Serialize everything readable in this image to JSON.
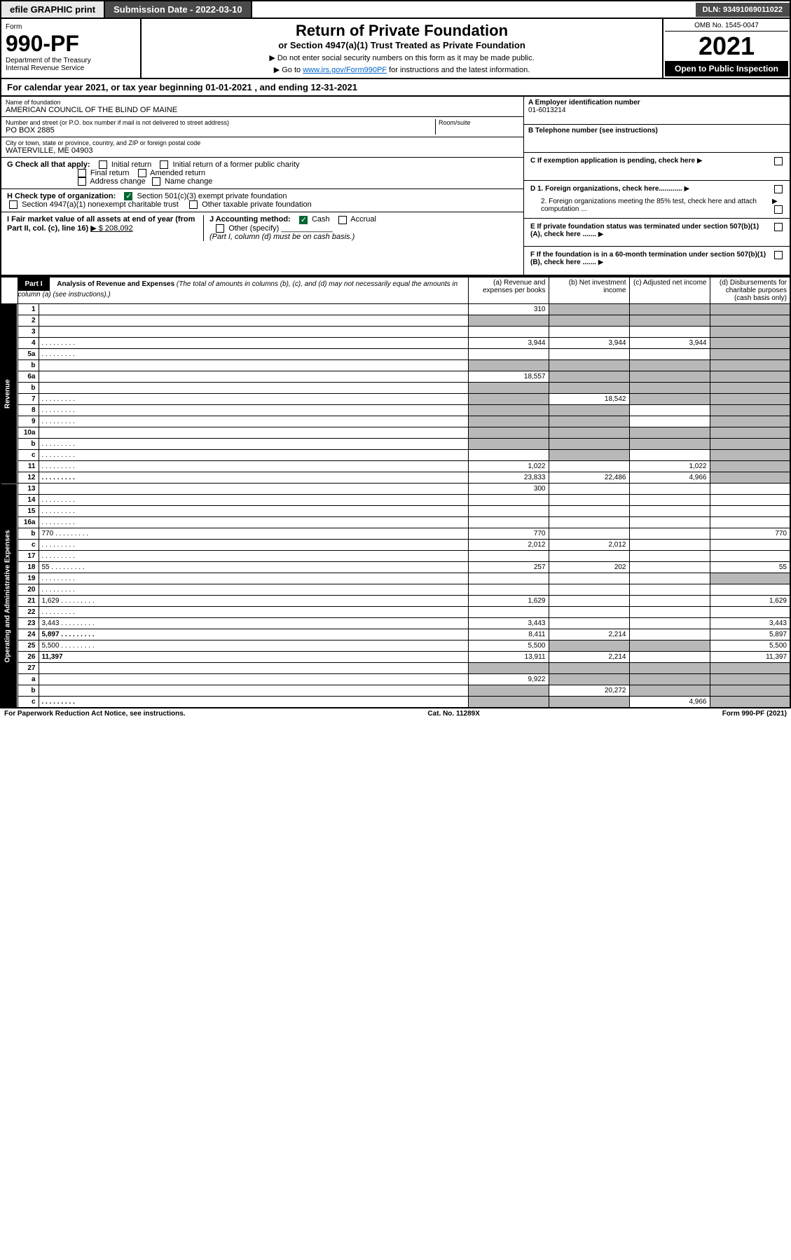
{
  "topbar": {
    "efile": "efile GRAPHIC print",
    "submission": "Submission Date - 2022-03-10",
    "dln": "DLN: 93491069011022"
  },
  "header": {
    "form_label": "Form",
    "form_number": "990-PF",
    "dept": "Department of the Treasury",
    "irs": "Internal Revenue Service",
    "title": "Return of Private Foundation",
    "subtitle": "or Section 4947(a)(1) Trust Treated as Private Foundation",
    "note1": "▶ Do not enter social security numbers on this form as it may be made public.",
    "note2_pre": "▶ Go to ",
    "note2_link": "www.irs.gov/Form990PF",
    "note2_post": " for instructions and the latest information.",
    "omb": "OMB No. 1545-0047",
    "year": "2021",
    "open": "Open to Public Inspection"
  },
  "calyear": "For calendar year 2021, or tax year beginning 01-01-2021          , and ending 12-31-2021",
  "foundation": {
    "name_label": "Name of foundation",
    "name": "AMERICAN COUNCIL OF THE BLIND OF MAINE",
    "addr_label": "Number and street (or P.O. box number if mail is not delivered to street address)",
    "addr": "PO BOX 2885",
    "room_label": "Room/suite",
    "city_label": "City or town, state or province, country, and ZIP or foreign postal code",
    "city": "WATERVILLE, ME  04903",
    "ein_label": "A Employer identification number",
    "ein": "01-6013214",
    "phone_label": "B Telephone number (see instructions)",
    "c_label": "C If exemption application is pending, check here",
    "d1": "D 1. Foreign organizations, check here............",
    "d2": "2. Foreign organizations meeting the 85% test, check here and attach computation ...",
    "e_label": "E If private foundation status was terminated under section 507(b)(1)(A), check here .......",
    "f_label": "F If the foundation is in a 60-month termination under section 507(b)(1)(B), check here .......",
    "g_label": "G Check all that apply:",
    "g_initial": "Initial return",
    "g_initial_former": "Initial return of a former public charity",
    "g_final": "Final return",
    "g_amended": "Amended return",
    "g_address": "Address change",
    "g_name": "Name change",
    "h_label": "H Check type of organization:",
    "h_501c3": "Section 501(c)(3) exempt private foundation",
    "h_4947": "Section 4947(a)(1) nonexempt charitable trust",
    "h_other": "Other taxable private foundation",
    "i_label": "I Fair market value of all assets at end of year (from Part II, col. (c), line 16)",
    "i_val": "▶ $  208,092",
    "j_label": "J Accounting method:",
    "j_cash": "Cash",
    "j_accrual": "Accrual",
    "j_other": "Other (specify)",
    "j_note": "(Part I, column (d) must be on cash basis.)"
  },
  "part1": {
    "label": "Part I",
    "title": "Analysis of Revenue and Expenses",
    "title_note": "(The total of amounts in columns (b), (c), and (d) may not necessarily equal the amounts in column (a) (see instructions).)",
    "col_a": "(a) Revenue and expenses per books",
    "col_b": "(b) Net investment income",
    "col_c": "(c) Adjusted net income",
    "col_d": "(d) Disbursements for charitable purposes (cash basis only)"
  },
  "sections": {
    "revenue": "Revenue",
    "expenses": "Operating and Administrative Expenses"
  },
  "rows": [
    {
      "n": "1",
      "d": "",
      "a": "310",
      "b": "",
      "c": "",
      "grey": [
        "b",
        "c",
        "d"
      ]
    },
    {
      "n": "2",
      "d": "",
      "a": "",
      "b": "",
      "c": "",
      "grey": [
        "a",
        "b",
        "c",
        "d"
      ],
      "bold_check": true
    },
    {
      "n": "3",
      "d": "",
      "a": "",
      "b": "",
      "c": "",
      "grey": [
        "d"
      ]
    },
    {
      "n": "4",
      "d": "",
      "a": "3,944",
      "b": "3,944",
      "c": "3,944",
      "grey": [
        "d"
      ],
      "dots": true
    },
    {
      "n": "5a",
      "d": "",
      "a": "",
      "b": "",
      "c": "",
      "grey": [
        "d"
      ],
      "dots": true
    },
    {
      "n": "b",
      "d": "",
      "a": "",
      "b": "",
      "c": "",
      "grey": [
        "a",
        "b",
        "c",
        "d"
      ]
    },
    {
      "n": "6a",
      "d": "",
      "a": "18,557",
      "b": "",
      "c": "",
      "grey": [
        "b",
        "c",
        "d"
      ]
    },
    {
      "n": "b",
      "d": "",
      "a": "",
      "b": "",
      "c": "",
      "grey": [
        "a",
        "b",
        "c",
        "d"
      ]
    },
    {
      "n": "7",
      "d": "",
      "a": "",
      "b": "18,542",
      "c": "",
      "grey": [
        "a",
        "c",
        "d"
      ],
      "dots": true
    },
    {
      "n": "8",
      "d": "",
      "a": "",
      "b": "",
      "c": "",
      "grey": [
        "a",
        "b",
        "d"
      ],
      "dots": true
    },
    {
      "n": "9",
      "d": "",
      "a": "",
      "b": "",
      "c": "",
      "grey": [
        "a",
        "b",
        "d"
      ],
      "dots": true
    },
    {
      "n": "10a",
      "d": "",
      "a": "",
      "b": "",
      "c": "",
      "grey": [
        "a",
        "b",
        "c",
        "d"
      ]
    },
    {
      "n": "b",
      "d": "",
      "a": "",
      "b": "",
      "c": "",
      "grey": [
        "a",
        "b",
        "c",
        "d"
      ],
      "dots": true
    },
    {
      "n": "c",
      "d": "",
      "a": "",
      "b": "",
      "c": "",
      "grey": [
        "b",
        "d"
      ],
      "dots": true
    },
    {
      "n": "11",
      "d": "",
      "a": "1,022",
      "b": "",
      "c": "1,022",
      "grey": [
        "d"
      ],
      "dots": true
    },
    {
      "n": "12",
      "d": "",
      "a": "23,833",
      "b": "22,486",
      "c": "4,966",
      "grey": [
        "d"
      ],
      "bold": true,
      "dots": true
    },
    {
      "n": "13",
      "d": "",
      "a": "300",
      "b": "",
      "c": ""
    },
    {
      "n": "14",
      "d": "",
      "a": "",
      "b": "",
      "c": "",
      "dots": true
    },
    {
      "n": "15",
      "d": "",
      "a": "",
      "b": "",
      "c": "",
      "dots": true
    },
    {
      "n": "16a",
      "d": "",
      "a": "",
      "b": "",
      "c": "",
      "dots": true
    },
    {
      "n": "b",
      "d": "770",
      "a": "770",
      "b": "",
      "c": "",
      "dots": true
    },
    {
      "n": "c",
      "d": "",
      "a": "2,012",
      "b": "2,012",
      "c": "",
      "dots": true
    },
    {
      "n": "17",
      "d": "",
      "a": "",
      "b": "",
      "c": "",
      "dots": true
    },
    {
      "n": "18",
      "d": "55",
      "a": "257",
      "b": "202",
      "c": "",
      "dots": true
    },
    {
      "n": "19",
      "d": "",
      "a": "",
      "b": "",
      "c": "",
      "grey": [
        "d"
      ],
      "dots": true
    },
    {
      "n": "20",
      "d": "",
      "a": "",
      "b": "",
      "c": "",
      "dots": true
    },
    {
      "n": "21",
      "d": "1,629",
      "a": "1,629",
      "b": "",
      "c": "",
      "dots": true
    },
    {
      "n": "22",
      "d": "",
      "a": "",
      "b": "",
      "c": "",
      "dots": true
    },
    {
      "n": "23",
      "d": "3,443",
      "a": "3,443",
      "b": "",
      "c": "",
      "dots": true
    },
    {
      "n": "24",
      "d": "5,897",
      "a": "8,411",
      "b": "2,214",
      "c": "",
      "bold": true,
      "dots": true
    },
    {
      "n": "25",
      "d": "5,500",
      "a": "5,500",
      "b": "",
      "c": "",
      "grey": [
        "b",
        "c"
      ],
      "dots": true
    },
    {
      "n": "26",
      "d": "11,397",
      "a": "13,911",
      "b": "2,214",
      "c": "",
      "bold": true
    },
    {
      "n": "27",
      "d": "",
      "a": "",
      "b": "",
      "c": "",
      "grey": [
        "a",
        "b",
        "c",
        "d"
      ]
    },
    {
      "n": "a",
      "d": "",
      "a": "9,922",
      "b": "",
      "c": "",
      "grey": [
        "b",
        "c",
        "d"
      ],
      "bold": true
    },
    {
      "n": "b",
      "d": "",
      "a": "",
      "b": "20,272",
      "c": "",
      "grey": [
        "a",
        "c",
        "d"
      ],
      "bold": true
    },
    {
      "n": "c",
      "d": "",
      "a": "",
      "b": "",
      "c": "4,966",
      "grey": [
        "a",
        "b",
        "d"
      ],
      "bold": true,
      "dots": true
    }
  ],
  "footer": {
    "left": "For Paperwork Reduction Act Notice, see instructions.",
    "mid": "Cat. No. 11289X",
    "right": "Form 990-PF (2021)"
  }
}
